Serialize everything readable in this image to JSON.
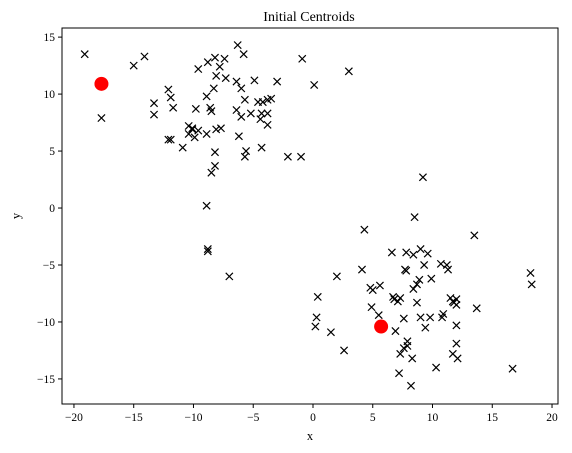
{
  "chart_data": {
    "type": "scatter",
    "title": "Initial Centroids",
    "xlabel": "x",
    "ylabel": "y",
    "xlim": [
      -21,
      20.5
    ],
    "ylim": [
      -17.2,
      15.8
    ],
    "xticks": [
      -20,
      -15,
      -10,
      -5,
      0,
      5,
      10,
      15,
      20
    ],
    "yticks": [
      -15,
      -10,
      -5,
      0,
      5,
      10,
      15
    ],
    "grid": false,
    "legend": "none",
    "series": [
      {
        "marker": "x",
        "color": "#000000",
        "points": [
          [
            -19.1,
            13.5
          ],
          [
            -14.1,
            13.3
          ],
          [
            -15.0,
            12.5
          ],
          [
            -17.7,
            7.9
          ],
          [
            -13.3,
            9.2
          ],
          [
            -13.3,
            8.2
          ],
          [
            -12.1,
            10.4
          ],
          [
            -11.9,
            9.7
          ],
          [
            -11.7,
            8.8
          ],
          [
            -12.1,
            6.0
          ],
          [
            -11.9,
            6.0
          ],
          [
            -10.9,
            5.3
          ],
          [
            -10.4,
            6.5
          ],
          [
            -10.4,
            7.2
          ],
          [
            -10.1,
            6.9
          ],
          [
            -10.1,
            7.0
          ],
          [
            -9.9,
            6.2
          ],
          [
            -9.6,
            6.8
          ],
          [
            -9.8,
            8.7
          ],
          [
            -9.6,
            12.2
          ],
          [
            -8.8,
            12.8
          ],
          [
            -8.2,
            13.2
          ],
          [
            -7.8,
            12.4
          ],
          [
            -7.4,
            13.1
          ],
          [
            -6.3,
            14.3
          ],
          [
            -5.8,
            13.5
          ],
          [
            -7.3,
            11.4
          ],
          [
            -8.6,
            8.8
          ],
          [
            -8.9,
            9.8
          ],
          [
            -8.3,
            10.5
          ],
          [
            -8.1,
            11.6
          ],
          [
            -7.7,
            7.0
          ],
          [
            -8.1,
            6.9
          ],
          [
            -8.5,
            8.5
          ],
          [
            -8.9,
            6.5
          ],
          [
            -8.2,
            4.9
          ],
          [
            -8.2,
            3.7
          ],
          [
            -8.5,
            3.1
          ],
          [
            -8.9,
            0.2
          ],
          [
            -8.8,
            -3.6
          ],
          [
            -8.8,
            -3.8
          ],
          [
            -7.0,
            -6.0
          ],
          [
            -6.4,
            11.1
          ],
          [
            -6.0,
            10.5
          ],
          [
            -4.9,
            11.2
          ],
          [
            -3.0,
            11.1
          ],
          [
            -5.7,
            9.5
          ],
          [
            -5.2,
            8.3
          ],
          [
            -6.4,
            8.6
          ],
          [
            -6.0,
            8.0
          ],
          [
            -6.2,
            6.3
          ],
          [
            -5.6,
            5.0
          ],
          [
            -5.7,
            4.5
          ],
          [
            -4.6,
            9.3
          ],
          [
            -4.2,
            9.3
          ],
          [
            -3.8,
            9.5
          ],
          [
            -3.5,
            9.6
          ],
          [
            -4.3,
            8.3
          ],
          [
            -3.8,
            8.3
          ],
          [
            -4.4,
            7.8
          ],
          [
            -3.8,
            7.3
          ],
          [
            -4.3,
            5.3
          ],
          [
            -2.1,
            4.5
          ],
          [
            -1.0,
            4.5
          ],
          [
            -0.9,
            13.1
          ],
          [
            0.1,
            10.8
          ],
          [
            3.0,
            12.0
          ],
          [
            9.2,
            2.7
          ],
          [
            8.5,
            -0.8
          ],
          [
            4.3,
            -1.9
          ],
          [
            13.5,
            -2.4
          ],
          [
            4.1,
            -5.4
          ],
          [
            4.8,
            -7.0
          ],
          [
            5.0,
            -7.2
          ],
          [
            5.6,
            -6.8
          ],
          [
            2.0,
            -6.0
          ],
          [
            6.6,
            -3.9
          ],
          [
            7.8,
            -3.9
          ],
          [
            8.4,
            -4.1
          ],
          [
            9.0,
            -3.6
          ],
          [
            9.6,
            -4.0
          ],
          [
            7.7,
            -5.4
          ],
          [
            7.8,
            -5.5
          ],
          [
            9.3,
            -5.0
          ],
          [
            8.9,
            -6.3
          ],
          [
            8.7,
            -6.7
          ],
          [
            9.9,
            -6.2
          ],
          [
            10.7,
            -4.9
          ],
          [
            11.2,
            -5.0
          ],
          [
            11.3,
            -5.4
          ],
          [
            0.4,
            -7.8
          ],
          [
            4.9,
            -8.7
          ],
          [
            5.5,
            -9.4
          ],
          [
            6.7,
            -7.8
          ],
          [
            7.1,
            -8.2
          ],
          [
            7.3,
            -7.9
          ],
          [
            6.8,
            -8.0
          ],
          [
            8.4,
            -7.1
          ],
          [
            8.7,
            -8.3
          ],
          [
            11.5,
            -7.9
          ],
          [
            11.8,
            -8.3
          ],
          [
            12.0,
            -8.0
          ],
          [
            12.0,
            -8.5
          ],
          [
            11.7,
            -8.2
          ],
          [
            13.7,
            -8.8
          ],
          [
            10.9,
            -9.3
          ],
          [
            10.8,
            -9.6
          ],
          [
            12.0,
            -10.3
          ],
          [
            9.0,
            -9.6
          ],
          [
            9.8,
            -9.6
          ],
          [
            7.6,
            -9.7
          ],
          [
            0.3,
            -9.6
          ],
          [
            0.2,
            -10.4
          ],
          [
            1.5,
            -10.9
          ],
          [
            6.9,
            -10.8
          ],
          [
            7.9,
            -11.7
          ],
          [
            7.9,
            -12.1
          ],
          [
            7.6,
            -12.3
          ],
          [
            7.3,
            -12.8
          ],
          [
            8.3,
            -13.2
          ],
          [
            9.4,
            -10.5
          ],
          [
            10.3,
            -14.0
          ],
          [
            7.2,
            -14.5
          ],
          [
            8.2,
            -15.6
          ],
          [
            11.7,
            -12.8
          ],
          [
            12.1,
            -13.2
          ],
          [
            12.0,
            -11.9
          ],
          [
            2.6,
            -12.5
          ],
          [
            16.7,
            -14.1
          ],
          [
            18.2,
            -5.7
          ],
          [
            18.3,
            -6.7
          ]
        ]
      },
      {
        "marker": "o",
        "color": "#ff0000",
        "points": [
          [
            -17.7,
            10.9
          ],
          [
            5.7,
            -10.4
          ]
        ]
      }
    ]
  }
}
